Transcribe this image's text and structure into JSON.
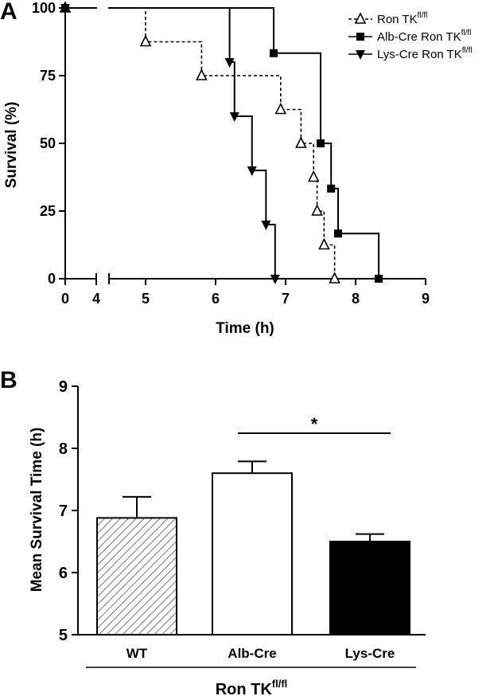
{
  "chart_data": [
    {
      "panel": "A",
      "type": "line",
      "step": true,
      "xlabel": "Time (h)",
      "ylabel": "Survival (%)",
      "xlim": [
        0,
        9
      ],
      "x_axis_break": [
        4,
        4.7
      ],
      "ylim": [
        0,
        100
      ],
      "x_ticks": [
        "0",
        "4",
        "5",
        "6",
        "7",
        "8",
        "9"
      ],
      "y_ticks": [
        "0",
        "25",
        "50",
        "75",
        "100"
      ],
      "legend_position": "top-right",
      "series": [
        {
          "name": "Ron TK",
          "name_sup": "fl/fl",
          "marker": "open-triangle-up",
          "line": "dashed",
          "color": "#000000",
          "x": [
            0,
            5.0,
            5.8,
            6.93,
            7.22,
            7.4,
            7.45,
            7.55,
            7.7
          ],
          "y": [
            100,
            87.5,
            75,
            62.5,
            50,
            37.5,
            25,
            12.5,
            0
          ]
        },
        {
          "name": "Alb-Cre Ron TK",
          "name_sup": "fl/fl",
          "marker": "filled-square",
          "line": "solid",
          "color": "#000000",
          "x": [
            0,
            6.83,
            7.5,
            7.65,
            7.75,
            8.33
          ],
          "y": [
            100,
            83.3,
            50,
            33.3,
            16.7,
            0
          ]
        },
        {
          "name": "Lys-Cre Ron TK",
          "name_sup": "fl/fl",
          "marker": "filled-triangle-down",
          "line": "solid",
          "color": "#000000",
          "x": [
            0,
            6.2,
            6.27,
            6.52,
            6.72,
            6.85
          ],
          "y": [
            100,
            80,
            60,
            40,
            20,
            0
          ]
        }
      ]
    },
    {
      "panel": "B",
      "type": "bar",
      "ylabel": "Mean Survival Time (h)",
      "ylim": [
        5,
        9
      ],
      "y_ticks": [
        "5",
        "6",
        "7",
        "8",
        "9"
      ],
      "categories": [
        "WT",
        "Alb-Cre",
        "Lys-Cre"
      ],
      "group_label": "Ron TK",
      "group_label_sup": "fl/fl",
      "values": [
        6.88,
        7.6,
        6.5
      ],
      "errors": [
        0.34,
        0.19,
        0.12
      ],
      "fills": [
        "hatched",
        "#ffffff",
        "#000000"
      ],
      "significance": {
        "from": "Alb-Cre",
        "to": "Lys-Cre",
        "label": "*"
      }
    }
  ]
}
